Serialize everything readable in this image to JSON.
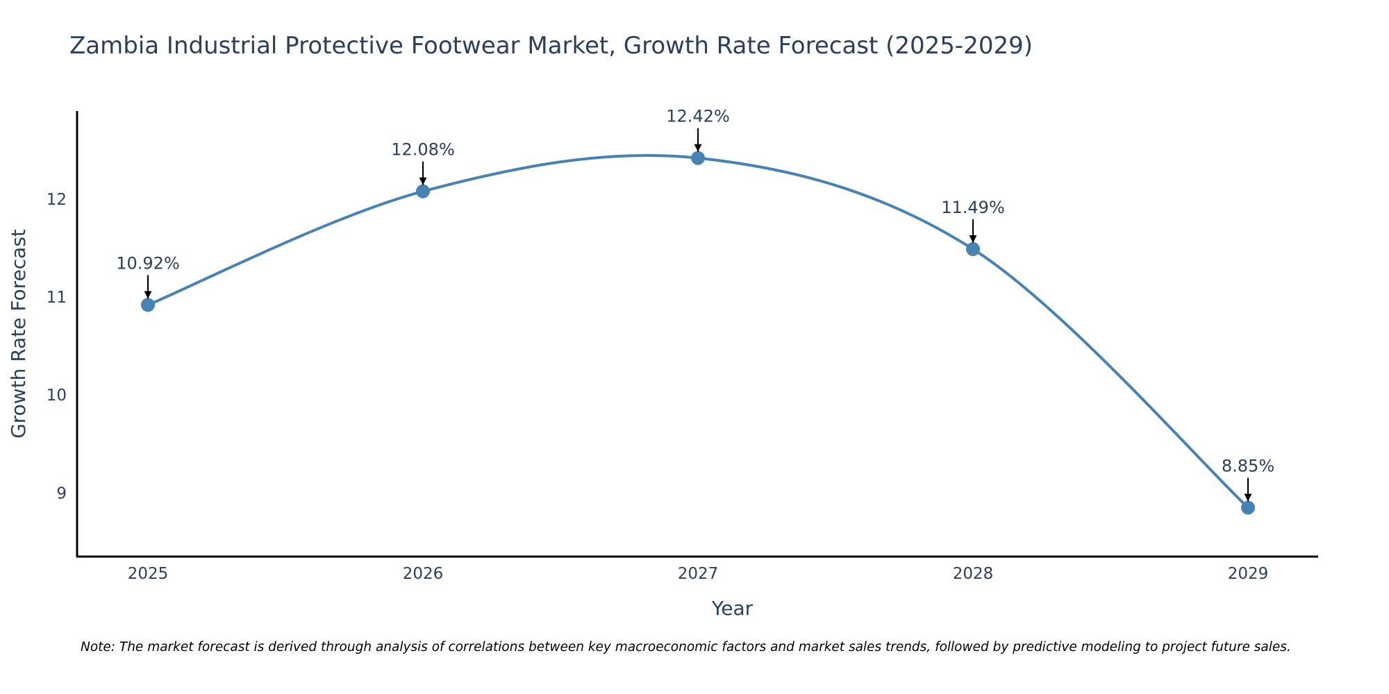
{
  "chart_data": {
    "type": "line",
    "title": "Zambia Industrial Protective Footwear Market, Growth Rate Forecast (2025-2029)",
    "xlabel": "Year",
    "ylabel": "Growth Rate Forecast",
    "categories": [
      "2025",
      "2026",
      "2027",
      "2028",
      "2029"
    ],
    "series": [
      {
        "name": "Growth Rate Forecast",
        "values": [
          10.92,
          12.08,
          12.42,
          11.49,
          8.85
        ],
        "labels": [
          "10.92%",
          "12.08%",
          "12.42%",
          "11.49%",
          "8.85%"
        ],
        "color": "#4682b4"
      }
    ],
    "yticks": [
      9,
      10,
      11,
      12
    ],
    "ylim": [
      8.35,
      12.9
    ],
    "grid": false,
    "line_shape": "spline"
  },
  "note": "Note: The market forecast is derived through analysis of correlations between key macroeconomic factors and market sales trends, followed by predictive modeling to project future sales.",
  "colors": {
    "line": "#4682b4",
    "marker": "#4682b4",
    "arrow": "#000000",
    "axis": "#000000",
    "text": "#2a3f5f"
  }
}
